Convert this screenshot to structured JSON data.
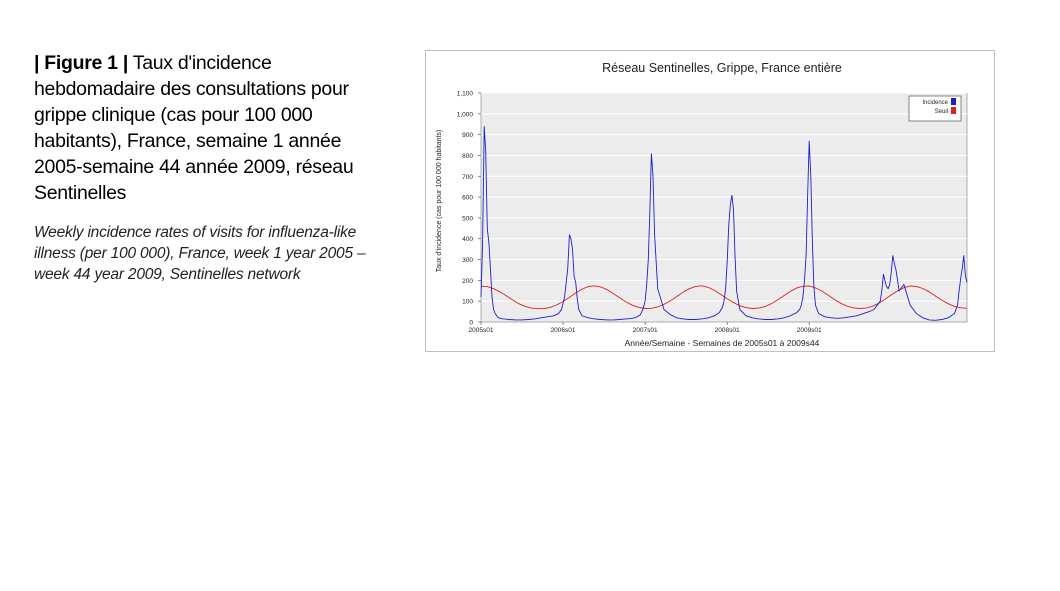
{
  "caption": {
    "figure_label": "| Figure 1 |",
    "text_fr": "Taux d'incidence hebdomadaire des consultations pour grippe clinique (cas pour 100 000 habitants), France, semaine 1 année 2005-semaine 44 année 2009, réseau Sentinelles",
    "text_en": "Weekly incidence rates of visits for influenza-like illness (per 100 000), France, week 1 year 2005 – week 44 year 2009, Sentinelles network"
  },
  "chart_data": {
    "type": "line",
    "title": "Réseau Sentinelles, Grippe, France entière",
    "xlabel": "Année/Semaine - Semaines de 2005s01 à 2009s44",
    "ylabel": "Taux d'incidence (cas pour 100 000 habitants)",
    "ylim": [
      0,
      1100
    ],
    "yticks": [
      0,
      100,
      200,
      300,
      400,
      500,
      600,
      700,
      800,
      900,
      1000,
      1100
    ],
    "ytick_labels": [
      "0",
      "100",
      "200",
      "300",
      "400",
      "500",
      "600",
      "700",
      "800",
      "900",
      "1,000",
      "1,100"
    ],
    "x_start": "2005s01",
    "x_end": "2009s44",
    "xtick_labels": [
      "2005s01",
      "2006s01",
      "2007s01",
      "2008s01",
      "2009s01"
    ],
    "grid": true,
    "legend_position": "top-right",
    "colors": {
      "incidence": "#1f1fc8",
      "seuil": "#e0201c"
    },
    "series": [
      {
        "name": "Incidence",
        "x": [
          0,
          1,
          2,
          3,
          4,
          5,
          6,
          7,
          8,
          9,
          11,
          14,
          18,
          22,
          26,
          30,
          34,
          38,
          42,
          46,
          49,
          51,
          53,
          55,
          56,
          57,
          58,
          59,
          60,
          61,
          62,
          64,
          68,
          72,
          76,
          80,
          84,
          88,
          92,
          96,
          99,
          101,
          102,
          103,
          104,
          105,
          106,
          107,
          108,
          109,
          110,
          112,
          116,
          120,
          124,
          128,
          132,
          136,
          140,
          144,
          148,
          151,
          153,
          154,
          155,
          156,
          157,
          158,
          159,
          160,
          161,
          162,
          164,
          168,
          172,
          176,
          180,
          184,
          188,
          192,
          196,
          200,
          202,
          203,
          204,
          205,
          206,
          207,
          208,
          209,
          210,
          211,
          212,
          214,
          218,
          222,
          226,
          230,
          234,
          238,
          242,
          246,
          249,
          251,
          253,
          254,
          255,
          256,
          257,
          258,
          259,
          260,
          261,
          262,
          263,
          265,
          268,
          272,
          276,
          280,
          284,
          288,
          292,
          296,
          300,
          302,
          303,
          304,
          305,
          306,
          307,
          308
        ],
        "values": [
          120,
          380,
          940,
          820,
          450,
          380,
          250,
          120,
          60,
          40,
          20,
          15,
          12,
          10,
          10,
          12,
          15,
          20,
          25,
          30,
          40,
          60,
          120,
          260,
          420,
          400,
          350,
          220,
          190,
          110,
          60,
          30,
          20,
          15,
          12,
          10,
          10,
          12,
          15,
          18,
          25,
          35,
          50,
          70,
          100,
          180,
          300,
          520,
          810,
          700,
          420,
          160,
          60,
          35,
          20,
          15,
          12,
          12,
          15,
          20,
          30,
          45,
          70,
          100,
          160,
          290,
          460,
          560,
          610,
          540,
          320,
          150,
          60,
          30,
          20,
          15,
          12,
          12,
          15,
          20,
          30,
          45,
          60,
          80,
          120,
          200,
          320,
          600,
          870,
          700,
          380,
          170,
          80,
          40,
          25,
          20,
          18,
          20,
          25,
          30,
          40,
          50,
          60,
          80,
          100,
          150,
          230,
          200,
          170,
          160,
          180,
          240,
          320,
          280,
          250,
          150,
          180,
          80,
          40,
          20,
          10,
          8,
          12,
          20,
          40,
          80,
          150,
          210,
          260,
          320,
          220,
          190
        ]
      },
      {
        "name": "Seuil",
        "x": [
          0,
          4,
          8,
          12,
          16,
          20,
          24,
          28,
          32,
          36,
          40,
          44,
          48,
          52,
          56,
          60,
          64,
          68,
          72,
          76,
          80,
          84,
          88,
          92,
          96,
          100,
          104,
          108,
          112,
          116,
          120,
          124,
          128,
          132,
          136,
          140,
          144,
          148,
          152,
          156,
          160,
          164,
          168,
          172,
          176,
          180,
          184,
          188,
          192,
          196,
          200,
          204,
          208,
          212,
          216,
          220,
          224,
          228,
          232,
          236,
          240,
          244,
          248,
          252,
          256,
          260,
          264,
          268,
          272,
          276,
          280,
          284,
          288,
          292,
          296,
          300,
          304,
          308
        ],
        "values": [
          172,
          170,
          160,
          145,
          126,
          106,
          88,
          75,
          67,
          64,
          65,
          70,
          82,
          98,
          118,
          140,
          158,
          170,
          174,
          168,
          155,
          136,
          116,
          96,
          80,
          70,
          65,
          66,
          72,
          85,
          102,
          122,
          143,
          160,
          171,
          174,
          166,
          152,
          132,
          112,
          93,
          78,
          69,
          65,
          67,
          74,
          88,
          106,
          127,
          147,
          163,
          172,
          173,
          164,
          149,
          129,
          108,
          90,
          76,
          68,
          65,
          67,
          75,
          90,
          109,
          130,
          150,
          165,
          173,
          171,
          161,
          145,
          125,
          105,
          88,
          75,
          68,
          66
        ]
      }
    ],
    "x_max": 308
  }
}
